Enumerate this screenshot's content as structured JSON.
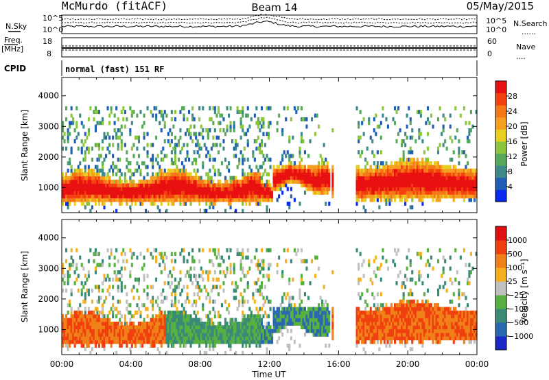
{
  "header": {
    "station": "McMurdo (fitACF)",
    "beam": "Beam 14",
    "date": "05/May/2015"
  },
  "strip_labels": {
    "nsky": "N.Sky",
    "freq_line1": "Freq.",
    "freq_line2": "[MHz]",
    "cpid": "CPID",
    "nsearch": "N.Search",
    "nave": "Nave",
    "noise_ticks_left": [
      "10^5",
      "10^0"
    ],
    "noise_ticks_right": [
      "10^5",
      "10^0"
    ],
    "freq_ticks": [
      "18",
      "8"
    ],
    "nave_ticks": [
      "60",
      "0"
    ],
    "dots": "......",
    "dots_short": "...."
  },
  "cpid_text": "normal (fast) 151 RF",
  "chart_data": [
    {
      "type": "heatmap",
      "name": "power",
      "ylabel": "Slant Range [km]",
      "xlabel": "",
      "ylim": [
        180,
        4600
      ],
      "yticks": [
        "1000",
        "2000",
        "3000",
        "4000"
      ],
      "ytick_values": [
        1000,
        2000,
        3000,
        4000
      ],
      "xlim": [
        0,
        24
      ],
      "colorbar": {
        "label": "Power [dB]",
        "tick_labels": [
          "4",
          "8",
          "12",
          "16",
          "20",
          "24",
          "28"
        ],
        "tick_values": [
          4,
          8,
          12,
          16,
          20,
          24,
          28
        ],
        "range": [
          0,
          32
        ],
        "colors": [
          "#0a2bf0",
          "#1f5fb8",
          "#3c8a8a",
          "#56a85a",
          "#8cc63c",
          "#e8d020",
          "#f5a020",
          "#f57818",
          "#f54010",
          "#e81010"
        ]
      }
    },
    {
      "type": "heatmap",
      "name": "velocity",
      "ylabel": "Slant Range [km]",
      "xlabel": "Time UT",
      "ylim": [
        180,
        4600
      ],
      "yticks": [
        "1000",
        "2000",
        "3000",
        "4000"
      ],
      "ytick_values": [
        1000,
        2000,
        3000,
        4000
      ],
      "xlim": [
        0,
        24
      ],
      "xticks": [
        "00:00",
        "04:00",
        "08:00",
        "12:00",
        "16:00",
        "20:00",
        "00:00"
      ],
      "xtick_values": [
        0,
        4,
        8,
        12,
        16,
        20,
        24
      ],
      "colorbar": {
        "label": "Velocity [m s⁻¹]",
        "tick_labels": [
          "1000",
          "500",
          "100",
          "25",
          "−25",
          "−100",
          "−500",
          "−1000"
        ],
        "colors": [
          "#1a28c8",
          "#2a68b0",
          "#3a8a78",
          "#58b040",
          "#c0c0c0",
          "#f5b020",
          "#f08018",
          "#f04010",
          "#e01010"
        ]
      }
    }
  ]
}
